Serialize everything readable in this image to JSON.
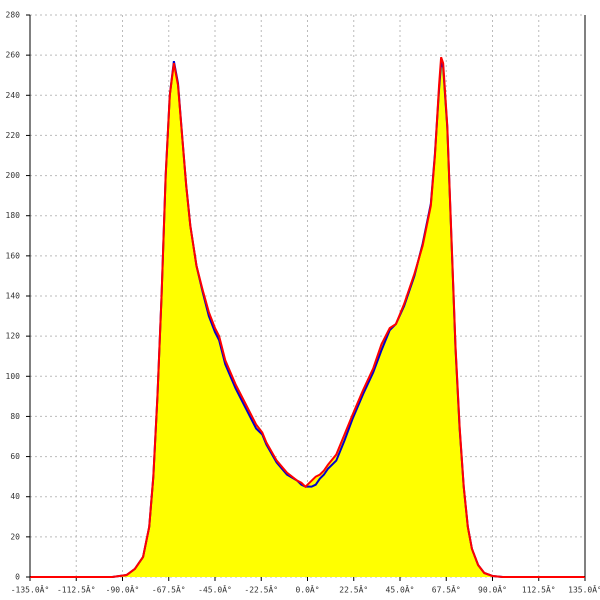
{
  "chart_data": {
    "type": "area",
    "x": [
      -135,
      -100,
      -95,
      -88,
      -84,
      -80,
      -77,
      -75,
      -73,
      -71,
      -69,
      -67,
      -65,
      -63,
      -61,
      -59,
      -57,
      -54,
      -51,
      -48,
      -45,
      -43,
      -40,
      -35,
      -30,
      -25,
      -22,
      -20,
      -15,
      -10,
      -5,
      -3,
      -1,
      0,
      2,
      4,
      6,
      8,
      10,
      14,
      18,
      22,
      27,
      32,
      36,
      40,
      43,
      47,
      52,
      56,
      60,
      62,
      64,
      65,
      66,
      68,
      70,
      72,
      74,
      76,
      78,
      80,
      83,
      86,
      90,
      95,
      135
    ],
    "series": [
      {
        "color": "#0000cc",
        "values": [
          0,
          0,
          0,
          1,
          4,
          10,
          25,
          50,
          90,
          140,
          200,
          240,
          257,
          246,
          220,
          195,
          175,
          155,
          142,
          130,
          122,
          118,
          106,
          94,
          84,
          74,
          71,
          66,
          57,
          51,
          48,
          46,
          45,
          45,
          45,
          46,
          49,
          51,
          54,
          58,
          68,
          79,
          91,
          102,
          113,
          123,
          126,
          135,
          150,
          166,
          186,
          211,
          243,
          256,
          254,
          224,
          169,
          114,
          74,
          45,
          25,
          14,
          6,
          2,
          0.5,
          0,
          0
        ]
      },
      {
        "color": "#ff0000",
        "fill": "#ffff00",
        "values": [
          0,
          0,
          0,
          1,
          4,
          10,
          25,
          50,
          90,
          140,
          200,
          240,
          256,
          245,
          220,
          195,
          175,
          155,
          143,
          132,
          124,
          120,
          108,
          96,
          86,
          76,
          72,
          67,
          58,
          52,
          48,
          47,
          45,
          46,
          48,
          50,
          51,
          53,
          56,
          61,
          71,
          81,
          93,
          104,
          116,
          124,
          126,
          136,
          151,
          165,
          185,
          210,
          245,
          259,
          256,
          225,
          170,
          115,
          75,
          45,
          25,
          14,
          6,
          2,
          0.5,
          0,
          0
        ]
      }
    ],
    "xlim": [
      -135,
      135
    ],
    "xticks": [
      {
        "value": -135,
        "label": "-135.0Â°"
      },
      {
        "value": -112.5,
        "label": "-112.5Â°"
      },
      {
        "value": -90,
        "label": "-90.0Â°"
      },
      {
        "value": -67.5,
        "label": "-67.5Â°"
      },
      {
        "value": -45,
        "label": "-45.0Â°"
      },
      {
        "value": -22.5,
        "label": "-22.5Â°"
      },
      {
        "value": 0,
        "label": "0.0Â°"
      },
      {
        "value": 22.5,
        "label": "22.5Â°"
      },
      {
        "value": 45,
        "label": "45.0Â°"
      },
      {
        "value": 67.5,
        "label": "67.5Â°"
      },
      {
        "value": 90,
        "label": "90.0Â°"
      },
      {
        "value": 112.5,
        "label": "112.5Â°"
      },
      {
        "value": 135,
        "label": "135.0Â°"
      }
    ],
    "ylim": [
      0,
      280
    ],
    "yticks": [
      0,
      20,
      40,
      60,
      80,
      100,
      120,
      140,
      160,
      180,
      200,
      220,
      240,
      260,
      280
    ],
    "grid": true
  }
}
